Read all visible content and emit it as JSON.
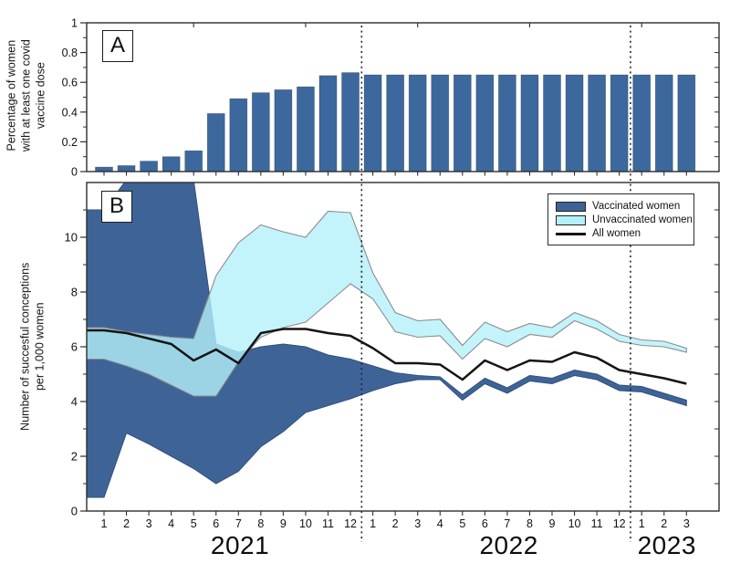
{
  "figure": {
    "panel_a": {
      "label": "A",
      "y_axis_title_lines": [
        "Percentage of women",
        "with at least one covid",
        "vaccine dose"
      ],
      "ytick_labels": [
        "0",
        "0.2",
        "0.4",
        "0.6",
        "0.8",
        "1"
      ]
    },
    "panel_b": {
      "label": "B",
      "y_axis_title_lines": [
        "Number of succesful conceptions",
        "per 1,000 women"
      ],
      "ytick_labels": [
        "0",
        "2",
        "4",
        "6",
        "8",
        "10"
      ]
    },
    "legend": {
      "items": [
        {
          "label": "Vaccinated women",
          "type": "patch",
          "color": "#3e6497"
        },
        {
          "label": "Unvaccinated women",
          "type": "patch",
          "color": "#b4f0fa"
        },
        {
          "label": "All women",
          "type": "line",
          "color": "#141414"
        }
      ]
    }
  },
  "months": {
    "labels": [
      "1",
      "2",
      "3",
      "4",
      "5",
      "6",
      "7",
      "8",
      "9",
      "10",
      "11",
      "12",
      "1",
      "2",
      "3",
      "4",
      "5",
      "6",
      "7",
      "8",
      "9",
      "10",
      "11",
      "12",
      "1",
      "2",
      "3"
    ],
    "years": [
      {
        "label": "2021",
        "from": 0,
        "to": 11
      },
      {
        "label": "2022",
        "from": 12,
        "to": 23
      },
      {
        "label": "2023",
        "from": 24,
        "to": 26
      }
    ],
    "year_separators_after_index": [
      11,
      23
    ]
  },
  "colors": {
    "bar": "#3c689e",
    "vaccinated_band": "#3e6497",
    "unvaccinated_band": "#b4f0fa",
    "all_women_line": "#141414",
    "band_outline": "#8c8c8c",
    "axis": "#2e2e2e",
    "separator": "#232334"
  },
  "chart_data": [
    {
      "type": "bar",
      "panel": "A",
      "title": "",
      "xlabel": "",
      "ylabel": "Percentage of women with at least one covid vaccine dose",
      "ylim": [
        0,
        1
      ],
      "yticks": [
        0,
        0.2,
        0.4,
        0.6,
        0.8,
        1
      ],
      "categories": [
        "2021-1",
        "2021-2",
        "2021-3",
        "2021-4",
        "2021-5",
        "2021-6",
        "2021-7",
        "2021-8",
        "2021-9",
        "2021-10",
        "2021-11",
        "2021-12",
        "2022-1",
        "2022-2",
        "2022-3",
        "2022-4",
        "2022-5",
        "2022-6",
        "2022-7",
        "2022-8",
        "2022-9",
        "2022-10",
        "2022-11",
        "2022-12",
        "2023-1",
        "2023-2",
        "2023-3"
      ],
      "values": [
        0.03,
        0.04,
        0.07,
        0.1,
        0.14,
        0.39,
        0.49,
        0.53,
        0.55,
        0.57,
        0.645,
        0.665,
        0.65,
        0.65,
        0.65,
        0.65,
        0.65,
        0.65,
        0.65,
        0.65,
        0.65,
        0.65,
        0.65,
        0.65,
        0.65,
        0.65,
        0.65
      ],
      "grid": false
    },
    {
      "type": "area",
      "panel": "B",
      "title": "",
      "xlabel": "",
      "ylabel": "Number of succesful conceptions per 1,000 women",
      "ylim": [
        0,
        12
      ],
      "yticks": [
        0,
        2,
        4,
        6,
        8,
        10
      ],
      "legend_position": "top-right",
      "grid": false,
      "series": [
        {
          "name": "Vaccinated women",
          "style": "confidence-band",
          "upper": [
            11.0,
            12.1,
            12.1,
            12.1,
            12.1,
            6.1,
            5.8,
            6.0,
            6.1,
            6.0,
            5.7,
            5.55,
            5.3,
            5.05,
            4.95,
            4.9,
            4.25,
            4.85,
            4.5,
            4.95,
            4.85,
            5.15,
            5.0,
            4.6,
            4.55,
            4.3,
            4.05
          ],
          "lower": [
            0.5,
            2.85,
            2.45,
            2.0,
            1.55,
            1.0,
            1.45,
            2.35,
            2.9,
            3.6,
            3.85,
            4.1,
            4.4,
            4.65,
            4.8,
            4.8,
            4.05,
            4.65,
            4.3,
            4.75,
            4.65,
            4.95,
            4.8,
            4.4,
            4.35,
            4.1,
            3.85
          ]
        },
        {
          "name": "Unvaccinated women",
          "style": "confidence-band",
          "upper": [
            6.7,
            6.55,
            6.45,
            6.35,
            6.3,
            8.6,
            9.8,
            10.45,
            10.2,
            10.0,
            10.95,
            10.9,
            8.7,
            7.25,
            6.95,
            7.0,
            6.05,
            6.9,
            6.55,
            6.85,
            6.7,
            7.25,
            6.95,
            6.45,
            6.25,
            6.2,
            5.95
          ],
          "lower": [
            5.55,
            5.3,
            5.0,
            4.6,
            4.2,
            4.2,
            5.45,
            6.35,
            6.7,
            6.9,
            7.6,
            8.3,
            7.75,
            6.55,
            6.35,
            6.4,
            5.55,
            6.3,
            6.0,
            6.45,
            6.35,
            6.95,
            6.65,
            6.2,
            6.05,
            6.0,
            5.8
          ]
        },
        {
          "name": "All women",
          "style": "line",
          "values": [
            6.6,
            6.5,
            6.3,
            6.1,
            5.5,
            5.9,
            5.4,
            6.5,
            6.65,
            6.65,
            6.5,
            6.4,
            5.95,
            5.4,
            5.4,
            5.35,
            4.8,
            5.5,
            5.15,
            5.5,
            5.45,
            5.8,
            5.6,
            5.15,
            5.0,
            4.85,
            4.65
          ]
        }
      ]
    }
  ]
}
